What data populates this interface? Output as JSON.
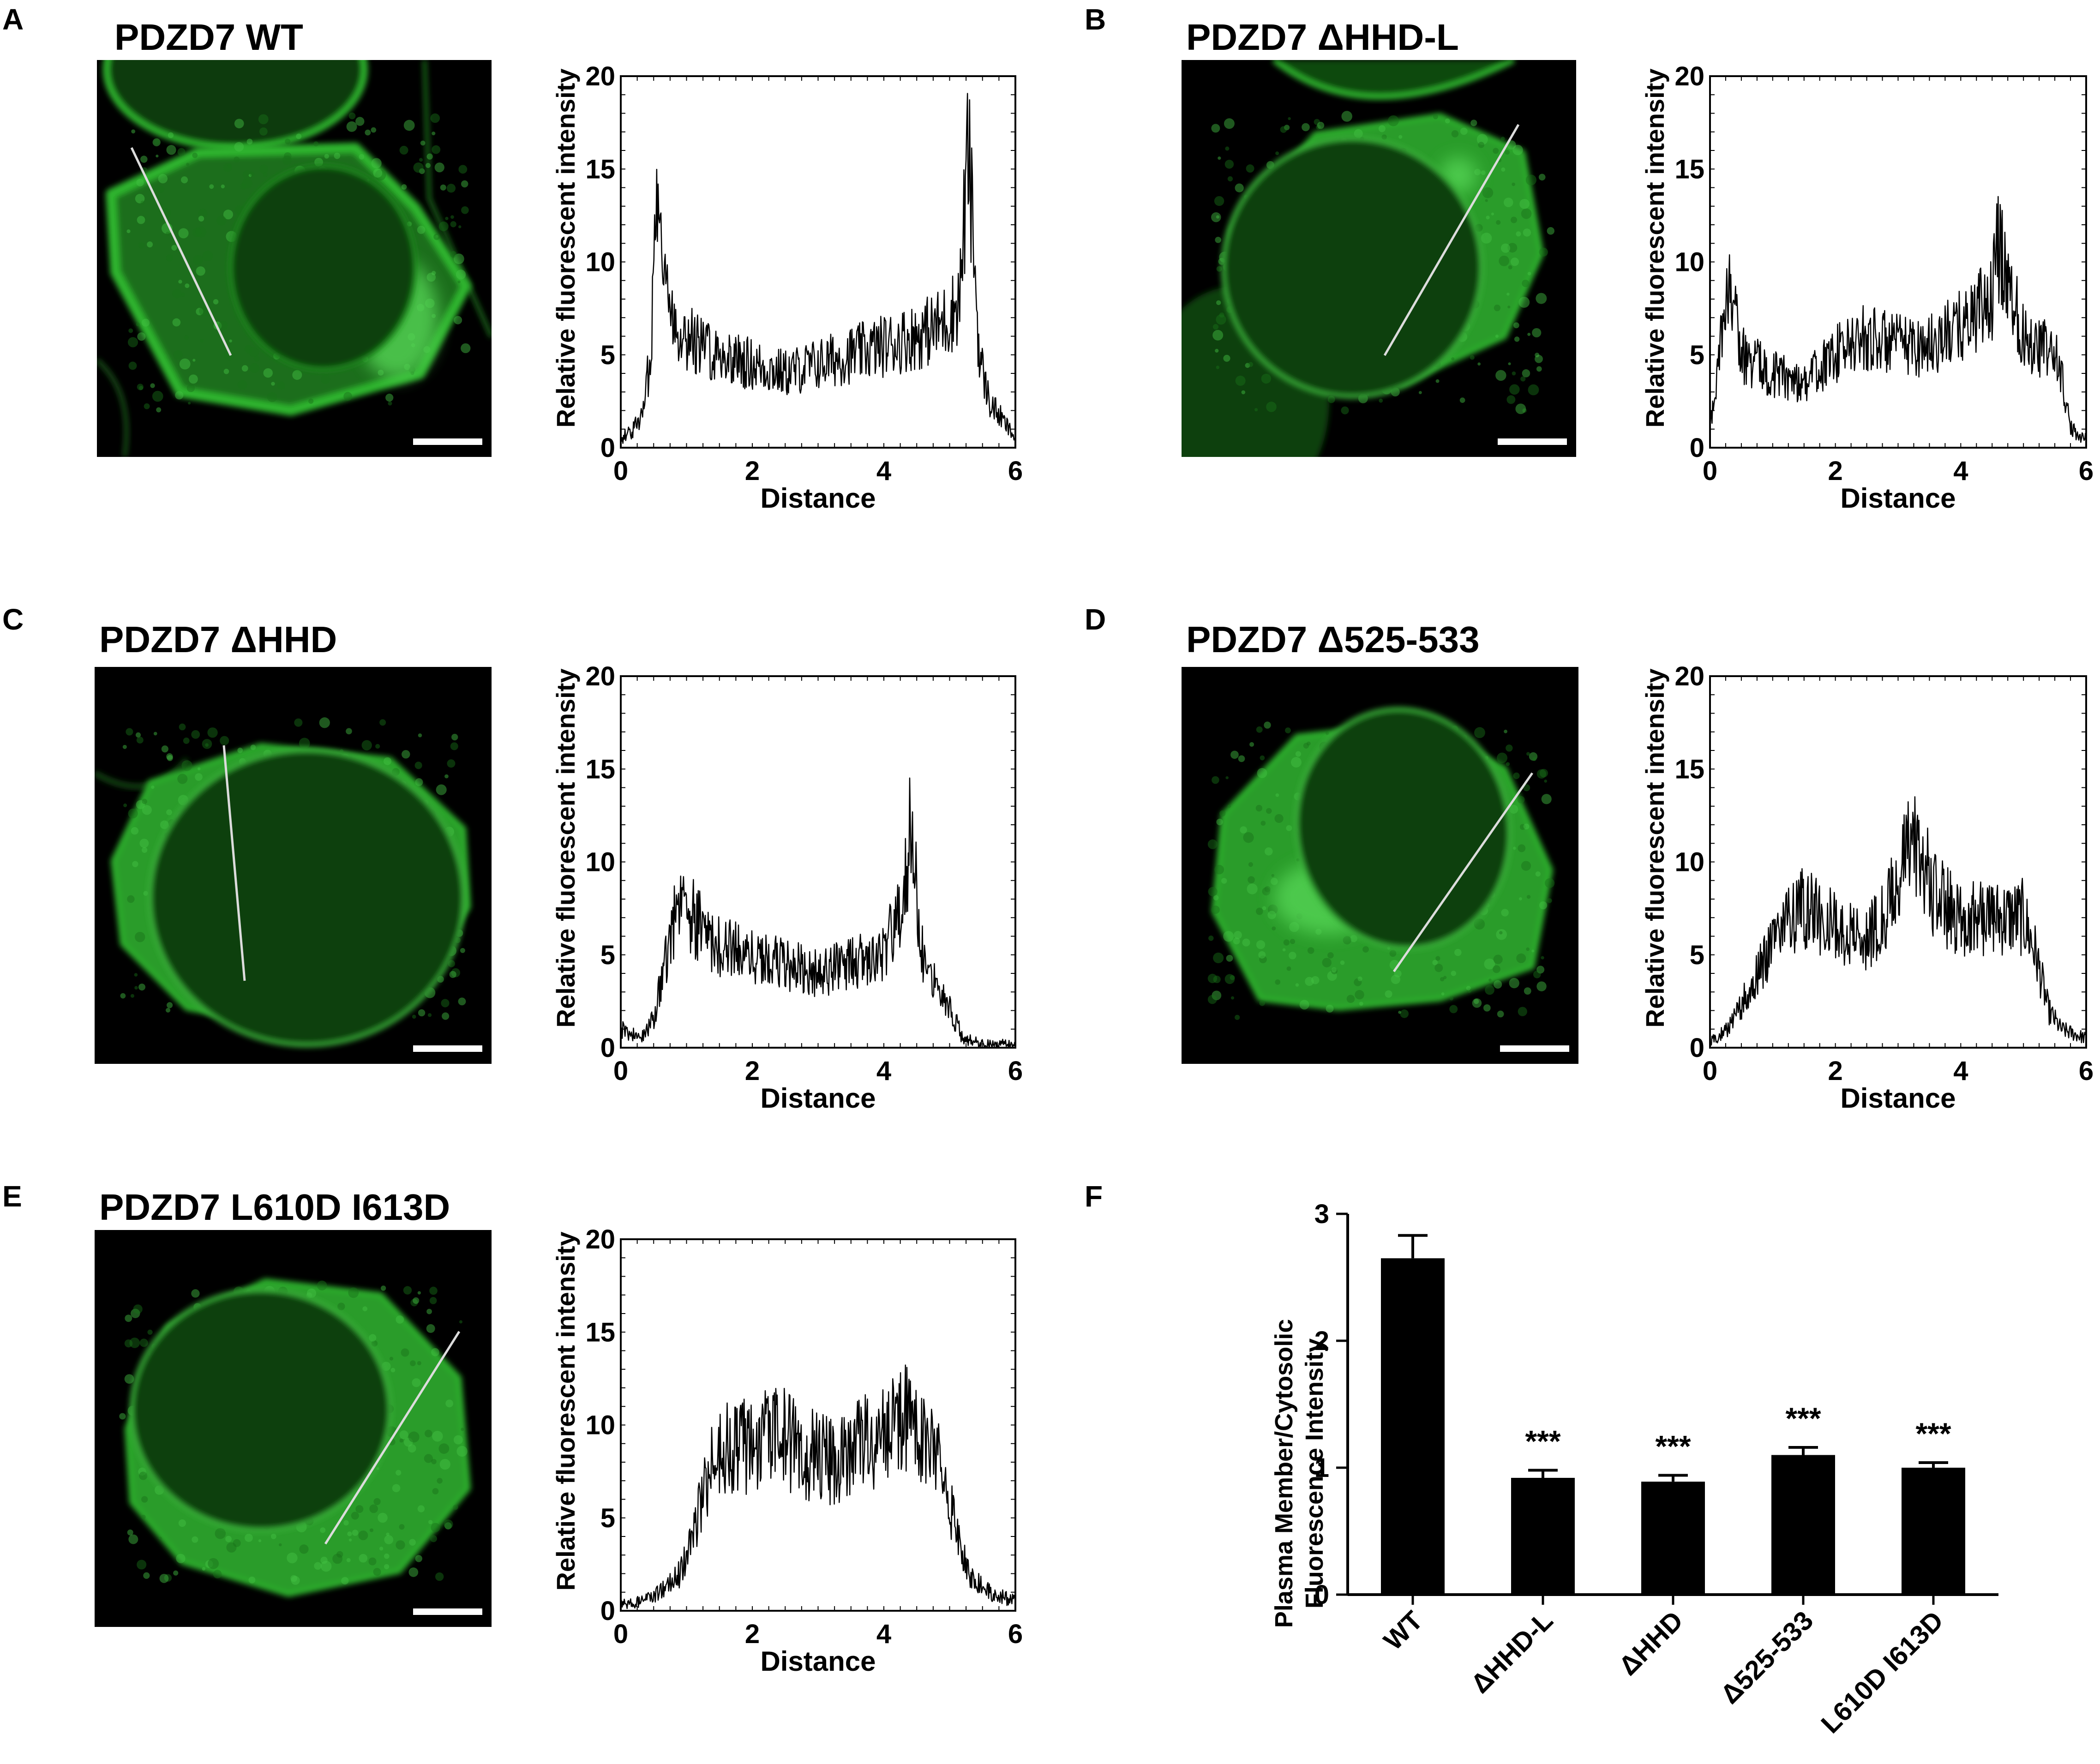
{
  "colors": {
    "cell_green": "#2fb52f",
    "background": "#000000",
    "trace": "#000000"
  },
  "panels": [
    {
      "label": "A",
      "title": "PDZD7 WT",
      "image": "micrograph-membrane-cell",
      "scale_bar": "present",
      "chart_data": {
        "type": "line",
        "xlabel": "Distance",
        "ylabel": "Relative fluorescent intensity",
        "xlim": [
          0,
          6
        ],
        "ylim": [
          0,
          20
        ],
        "xticks": [
          0,
          2,
          4,
          6
        ],
        "yticks": [
          0,
          5,
          10,
          15,
          20
        ],
        "grid": false,
        "x": [
          0.0,
          0.2,
          0.35,
          0.45,
          0.52,
          0.58,
          0.63,
          0.7,
          0.8,
          1.0,
          1.5,
          2.0,
          2.5,
          3.0,
          3.5,
          4.0,
          4.5,
          4.8,
          5.0,
          5.15,
          5.22,
          5.28,
          5.35,
          5.45,
          5.6,
          5.8,
          6.0
        ],
        "y": [
          0.5,
          1.0,
          2.0,
          5.0,
          11.0,
          16.5,
          12.0,
          8.0,
          7.0,
          6.0,
          5.0,
          4.5,
          4.0,
          4.5,
          5.0,
          5.5,
          6.0,
          6.5,
          7.0,
          8.0,
          12.0,
          16.0,
          12.0,
          5.0,
          2.5,
          1.5,
          0.5
        ]
      }
    },
    {
      "label": "B",
      "title": "PDZD7 ΔHHD-L",
      "image": "micrograph-diffuse-cell",
      "scale_bar": "present",
      "chart_data": {
        "type": "line",
        "xlabel": "Distance",
        "ylabel": "Relative fluorescent intensity",
        "xlim": [
          0,
          6
        ],
        "ylim": [
          0,
          20
        ],
        "xticks": [
          0,
          2,
          4,
          6
        ],
        "yticks": [
          0,
          5,
          10,
          15,
          20
        ],
        "grid": false,
        "x": [
          0.0,
          0.1,
          0.2,
          0.3,
          0.5,
          1.0,
          1.5,
          2.0,
          2.5,
          3.0,
          3.5,
          4.0,
          4.5,
          4.6,
          5.0,
          5.5,
          5.6,
          5.75,
          6.0
        ],
        "y": [
          1.0,
          4.0,
          6.0,
          9.5,
          5.0,
          4.0,
          3.5,
          5.0,
          6.0,
          5.5,
          5.5,
          6.5,
          8.0,
          11.0,
          6.0,
          5.0,
          4.0,
          1.0,
          0.5
        ]
      }
    },
    {
      "label": "C",
      "title": "PDZD7 ΔHHD",
      "image": "micrograph-diffuse-cell",
      "scale_bar": "present",
      "chart_data": {
        "type": "line",
        "xlabel": "Distance",
        "ylabel": "Relative fluorescent intensity",
        "xlim": [
          0,
          6
        ],
        "ylim": [
          0,
          20
        ],
        "xticks": [
          0,
          2,
          4,
          6
        ],
        "yticks": [
          0,
          5,
          10,
          15,
          20
        ],
        "grid": false,
        "x": [
          0.0,
          0.3,
          0.5,
          0.7,
          0.9,
          1.2,
          1.5,
          2.0,
          2.5,
          3.0,
          3.5,
          4.0,
          4.3,
          4.4,
          4.6,
          4.9,
          5.2,
          5.5,
          6.0
        ],
        "y": [
          1.0,
          0.5,
          1.5,
          5.0,
          8.0,
          6.5,
          5.5,
          5.0,
          4.5,
          4.0,
          4.5,
          5.0,
          8.0,
          11.5,
          5.0,
          3.0,
          0.5,
          0.2,
          0.2
        ]
      }
    },
    {
      "label": "D",
      "title": "PDZD7 Δ525-533",
      "image": "micrograph-diffuse-cell",
      "scale_bar": "present",
      "chart_data": {
        "type": "line",
        "xlabel": "Distance",
        "ylabel": "Relative fluorescent intensity",
        "xlim": [
          0,
          6
        ],
        "ylim": [
          0,
          20
        ],
        "xticks": [
          0,
          2,
          4,
          6
        ],
        "yticks": [
          0,
          5,
          10,
          15,
          20
        ],
        "grid": false,
        "x": [
          0.0,
          0.3,
          0.6,
          0.9,
          1.2,
          1.5,
          2.0,
          2.5,
          2.8,
          3.0,
          3.2,
          3.4,
          3.6,
          4.0,
          4.5,
          5.0,
          5.2,
          5.4,
          5.6,
          6.0
        ],
        "y": [
          0.3,
          1.0,
          3.0,
          5.0,
          7.0,
          7.5,
          6.5,
          6.0,
          7.0,
          9.0,
          11.0,
          10.0,
          8.0,
          7.0,
          7.0,
          7.0,
          5.0,
          2.0,
          1.0,
          0.5
        ]
      }
    },
    {
      "label": "E",
      "title": "PDZD7 L610D I613D",
      "image": "micrograph-diffuse-cell",
      "scale_bar": "present",
      "chart_data": {
        "type": "line",
        "xlabel": "Distance",
        "ylabel": "Relative fluorescent intensity",
        "xlim": [
          0,
          6
        ],
        "ylim": [
          0,
          20
        ],
        "xticks": [
          0,
          2,
          4,
          6
        ],
        "yticks": [
          0,
          5,
          10,
          15,
          20
        ],
        "grid": false,
        "x": [
          0.0,
          0.3,
          0.6,
          0.9,
          1.1,
          1.3,
          1.5,
          2.0,
          2.4,
          2.8,
          3.2,
          3.6,
          4.0,
          4.3,
          4.6,
          4.9,
          5.1,
          5.3,
          5.6,
          6.0
        ],
        "y": [
          0.3,
          0.5,
          1.0,
          2.0,
          4.0,
          7.0,
          8.5,
          9.0,
          9.5,
          8.5,
          8.0,
          9.0,
          9.5,
          10.5,
          9.0,
          8.0,
          4.0,
          2.0,
          1.0,
          0.5
        ]
      }
    }
  ],
  "panel_f": {
    "label": "F",
    "chart_data": {
      "type": "bar",
      "categories": [
        "WT",
        "ΔHHD-L",
        "ΔHHD",
        "Δ525-533",
        "L610D I613D"
      ],
      "values": [
        2.65,
        0.92,
        0.89,
        1.1,
        1.0
      ],
      "errors": [
        0.18,
        0.06,
        0.05,
        0.06,
        0.04
      ],
      "significance": [
        "",
        "***",
        "***",
        "***",
        "***"
      ],
      "ylabel_lines": [
        "Plasma Member/Cytosolic",
        "Fluorescence Intensity"
      ],
      "ylim": [
        0,
        3
      ],
      "yticks": [
        0,
        1,
        2,
        3
      ],
      "grid": false
    }
  }
}
